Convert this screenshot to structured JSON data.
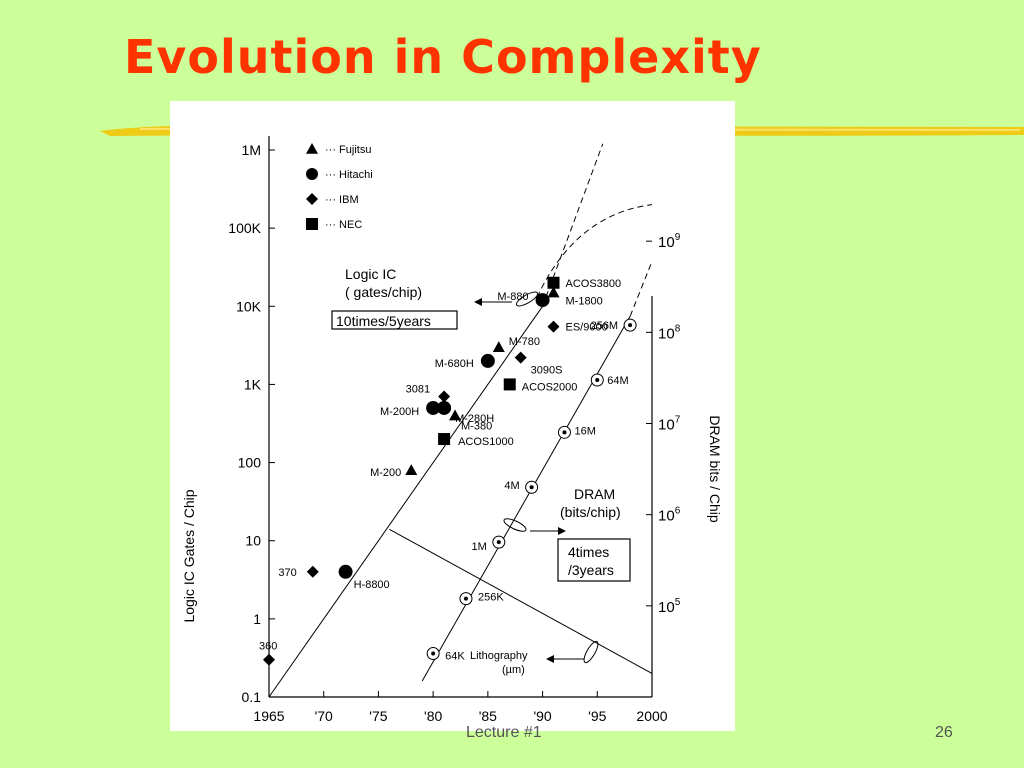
{
  "slide": {
    "title": "Evolution in Complexity",
    "footer_center": "Lecture #1",
    "page_number": "26",
    "background": "#ccff99",
    "title_color": "#ff3300",
    "highlight_color": "#f2c200"
  },
  "chart_data": {
    "type": "scatter",
    "x_axis": {
      "range": [
        1965,
        2000
      ],
      "ticks": [
        "1965",
        "'70",
        "'75",
        "'80",
        "'85",
        "'90",
        "'95",
        "2000"
      ]
    },
    "y_left": {
      "label": "Logic IC Gates / Chip",
      "scale": "log",
      "range": [
        0.1,
        1000000
      ],
      "ticks": [
        "0.1",
        "1",
        "10",
        "100",
        "1K",
        "10K",
        "100K",
        "1M"
      ]
    },
    "y_right": {
      "label": "DRAM bits / Chip",
      "scale": "log",
      "range": [
        10000,
        10000000000
      ],
      "ticks": [
        "10^5",
        "10^6",
        "10^7",
        "10^8",
        "10^9"
      ]
    },
    "legend": [
      {
        "marker": "triangle",
        "name": "Fujitsu"
      },
      {
        "marker": "circle",
        "name": "Hitachi"
      },
      {
        "marker": "diamond",
        "name": "IBM"
      },
      {
        "marker": "square",
        "name": "NEC"
      }
    ],
    "logic_points": [
      {
        "label": "360",
        "x": 1965,
        "y": 0.3,
        "maker": "IBM"
      },
      {
        "label": "370",
        "x": 1969,
        "y": 4,
        "maker": "IBM"
      },
      {
        "label": "H-8800",
        "x": 1972,
        "y": 4,
        "maker": "Hitachi"
      },
      {
        "label": "M-200",
        "x": 1978,
        "y": 80,
        "maker": "Fujitsu"
      },
      {
        "label": "ACOS1000",
        "x": 1981,
        "y": 200,
        "maker": "NEC"
      },
      {
        "label": "M-380",
        "x": 1982,
        "y": 400,
        "maker": "Fujitsu"
      },
      {
        "label": "M-200H",
        "x": 1980,
        "y": 500,
        "maker": "Hitachi"
      },
      {
        "label": "M-280H",
        "x": 1981,
        "y": 500,
        "maker": "Hitachi"
      },
      {
        "label": "3081",
        "x": 1981,
        "y": 700,
        "maker": "IBM"
      },
      {
        "label": "ACOS2000",
        "x": 1987,
        "y": 1000,
        "maker": "NEC"
      },
      {
        "label": "M-680H",
        "x": 1985,
        "y": 2000,
        "maker": "Hitachi"
      },
      {
        "label": "3090S",
        "x": 1988,
        "y": 2200,
        "maker": "IBM"
      },
      {
        "label": "M-780",
        "x": 1986,
        "y": 3000,
        "maker": "Fujitsu"
      },
      {
        "label": "ES/9000",
        "x": 1991,
        "y": 5500,
        "maker": "IBM"
      },
      {
        "label": "M-880",
        "x": 1990,
        "y": 12000,
        "maker": "Hitachi"
      },
      {
        "label": "M-1800",
        "x": 1991,
        "y": 15000,
        "maker": "Fujitsu"
      },
      {
        "label": "ACOS3800",
        "x": 1991,
        "y": 20000,
        "maker": "NEC"
      }
    ],
    "dram_points": [
      {
        "label": "64K",
        "x": 1980,
        "y": 30000
      },
      {
        "label": "256K",
        "x": 1983,
        "y": 120000
      },
      {
        "label": "1M",
        "x": 1986,
        "y": 500000
      },
      {
        "label": "4M",
        "x": 1989,
        "y": 2000000
      },
      {
        "label": "16M",
        "x": 1992,
        "y": 8000000
      },
      {
        "label": "64M",
        "x": 1995,
        "y": 30000000
      },
      {
        "label": "256M",
        "x": 1998,
        "y": 120000000
      }
    ],
    "annotations": {
      "logic_title_1": "Logic IC",
      "logic_title_2": "( gates/chip)",
      "logic_rate": "10times/5years",
      "dram_title_1": "DRAM",
      "dram_title_2": "(bits/chip)",
      "dram_rate_1": "4times",
      "dram_rate_2": "/3years",
      "litho_1": "Lithography",
      "litho_2": "(µm)"
    }
  }
}
